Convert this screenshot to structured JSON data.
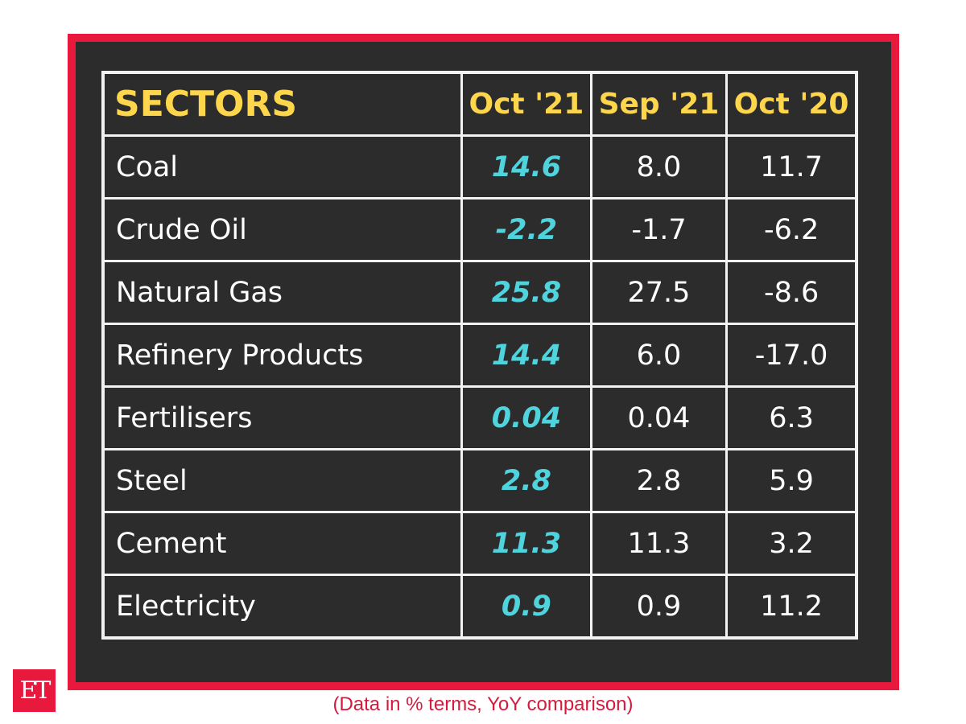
{
  "chart_data": {
    "type": "table",
    "columns": [
      "SECTORS",
      "Oct '21",
      "Sep '21",
      "Oct '20"
    ],
    "rows": [
      [
        "Coal",
        "14.6",
        "8.0",
        "11.7"
      ],
      [
        "Crude Oil",
        "-2.2",
        "-1.7",
        "-6.2"
      ],
      [
        "Natural Gas",
        "25.8",
        "27.5",
        "-8.6"
      ],
      [
        "Refinery Products",
        "14.4",
        "6.0",
        "-17.0"
      ],
      [
        "Fertilisers",
        "0.04",
        "0.04",
        "6.3"
      ],
      [
        "Steel",
        "2.8",
        "2.8",
        "5.9"
      ],
      [
        "Cement",
        "11.3",
        "11.3",
        "3.2"
      ],
      [
        "Electricity",
        "0.9",
        "0.9",
        "11.2"
      ]
    ],
    "highlight_column": "Oct '21",
    "colors": {
      "frame": "#e8193c",
      "background": "#2c2c2c",
      "header": "#fdd64b",
      "highlight": "#4fd3dc",
      "text": "#ffffff"
    }
  },
  "caption": "(Data in % terms, YoY comparison)",
  "logo": "ET"
}
